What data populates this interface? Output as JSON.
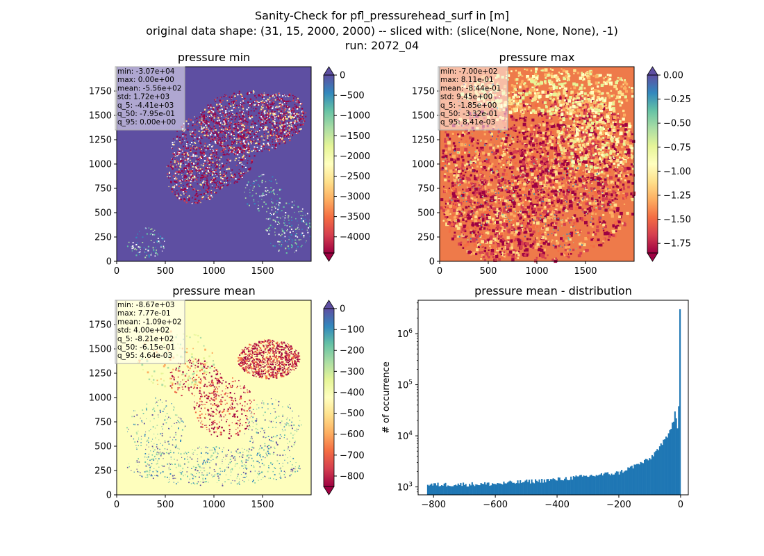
{
  "figure": {
    "title_lines": [
      "Sanity-Check for pfl_pressurehead_surf in [m]",
      "original data shape: (31, 15, 2000, 2000) -- sliced with: (slice(None, None, None), -1)",
      "run: 2072_04"
    ]
  },
  "chart_data": [
    {
      "type": "heatmap",
      "title": "pressure min",
      "xlim": [
        0,
        2000
      ],
      "ylim": [
        0,
        2000
      ],
      "xticks": [
        0,
        500,
        1000,
        1500
      ],
      "yticks": [
        0,
        250,
        500,
        750,
        1000,
        1250,
        1500,
        1750
      ],
      "colorbar": {
        "min": -4400,
        "max": 0,
        "ticks": [
          0,
          -500,
          -1000,
          -1500,
          -2000,
          -2500,
          -3000,
          -3500,
          -4000
        ],
        "colormap": "Spectral",
        "extend": "both"
      },
      "background_color": "#5e4fa2",
      "stats": [
        "min: -3.07e+04",
        "max: 0.00e+00",
        "mean: -5.56e+02",
        "std: 1.72e+03",
        "q_5: -4.41e+03",
        "q_50: -7.95e-01",
        "q_95: 0.00e+00"
      ]
    },
    {
      "type": "heatmap",
      "title": "pressure max",
      "xlim": [
        0,
        2000
      ],
      "ylim": [
        0,
        2000
      ],
      "xticks": [
        0,
        500,
        1000,
        1500
      ],
      "yticks": [
        0,
        250,
        500,
        750,
        1000,
        1250,
        1500,
        1750
      ],
      "colorbar": {
        "min": -1.85,
        "max": 0.0,
        "ticks": [
          "0.00",
          "−0.25",
          "−0.50",
          "−0.75",
          "−1.00",
          "−1.25",
          "−1.50",
          "−1.75"
        ],
        "tick_values": [
          0,
          -0.25,
          -0.5,
          -0.75,
          -1.0,
          -1.25,
          -1.5,
          -1.75
        ],
        "colormap": "Spectral",
        "extend": "both"
      },
      "background_color": "#ee7a4a",
      "stats": [
        "min: -7.00e+02",
        "max: 8.11e-01",
        "mean: -8.44e-01",
        "std: 9.45e+00",
        "q_5: -1.85e+00",
        "q_50: -3.32e-01",
        "q_95: 8.41e-03"
      ]
    },
    {
      "type": "heatmap",
      "title": "pressure mean",
      "xlim": [
        0,
        2000
      ],
      "ylim": [
        0,
        2000
      ],
      "xticks": [
        0,
        500,
        1000,
        1500
      ],
      "yticks": [
        0,
        250,
        500,
        750,
        1000,
        1250,
        1500,
        1750
      ],
      "colorbar": {
        "min": -850,
        "max": 0,
        "ticks": [
          0,
          -100,
          -200,
          -300,
          -400,
          -500,
          -600,
          -700,
          -800
        ],
        "colormap": "Spectral",
        "extend": "both"
      },
      "background_color": "#fefebd",
      "stats": [
        "min: -8.67e+03",
        "max: 7.77e-01",
        "mean: -1.09e+02",
        "std: 4.00e+02",
        "q_5: -8.21e+02",
        "q_50: -6.15e-01",
        "q_95: 4.64e-03"
      ]
    },
    {
      "type": "bar",
      "title": "pressure mean - distribution",
      "ylabel": "# of occurrence",
      "xlabel": "",
      "yscale": "log",
      "xlim": [
        -850,
        25
      ],
      "ylim": [
        700,
        4500000
      ],
      "xticks": [
        -800,
        -600,
        -400,
        -200,
        0
      ],
      "yticks": [
        1000,
        10000,
        100000,
        1000000
      ],
      "color": "#1f77b4",
      "bin_range": [
        -821,
        0
      ],
      "bins": 200,
      "key_values": [
        {
          "x": -820,
          "y": 1100
        },
        {
          "x": -600,
          "y": 1150
        },
        {
          "x": -400,
          "y": 1400
        },
        {
          "x": -200,
          "y": 1900
        },
        {
          "x": -100,
          "y": 3500
        },
        {
          "x": -40,
          "y": 10000
        },
        {
          "x": -14,
          "y": 30000
        },
        {
          "x": -2,
          "y": 3000000
        }
      ]
    }
  ]
}
